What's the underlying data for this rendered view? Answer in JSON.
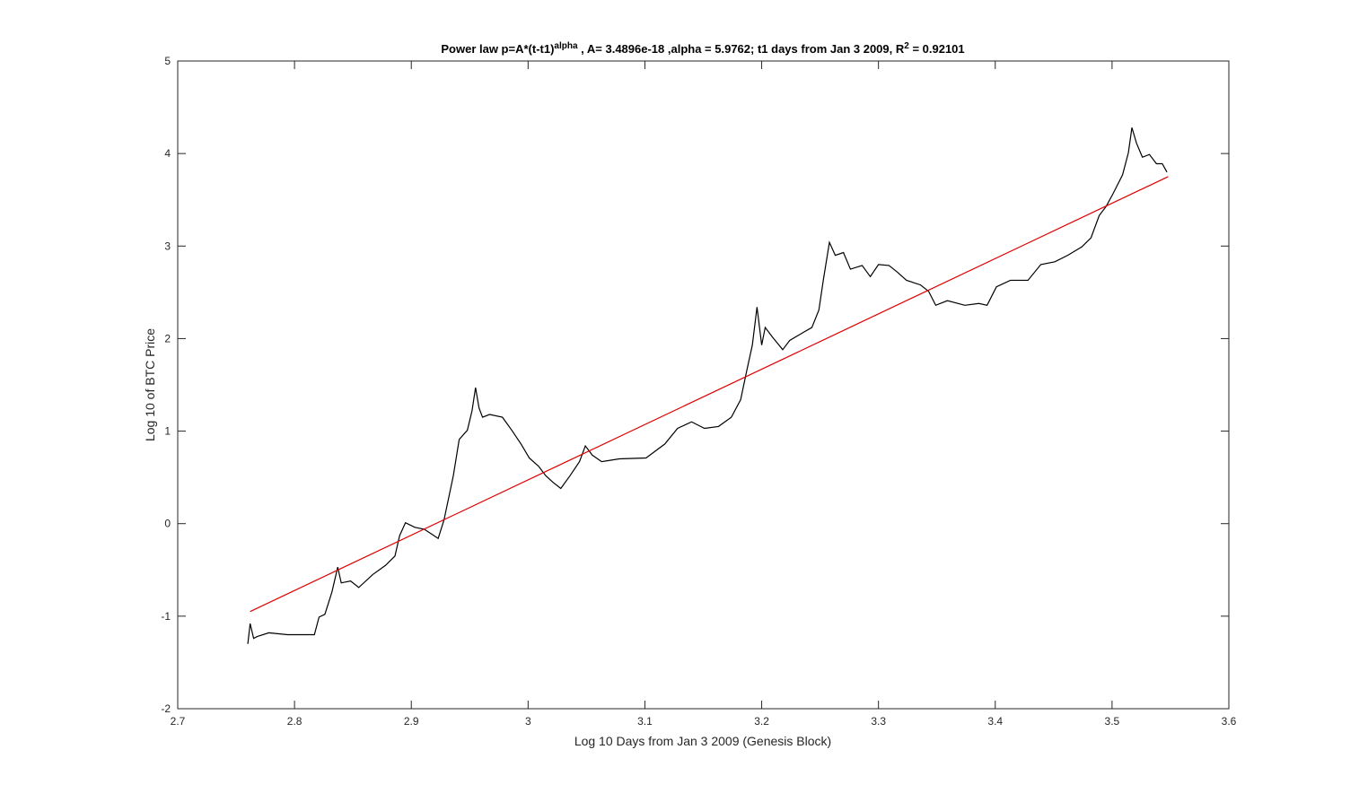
{
  "chart_data": {
    "type": "line",
    "title_parts": [
      {
        "text": "Power law p=A*(t-t1)"
      },
      {
        "text": "alpha",
        "superscript": true
      },
      {
        "text": " , A= 3.4896e-18 ,alpha = 5.9762; t1 days from Jan 3 2009, R"
      },
      {
        "text": "2",
        "superscript": true
      },
      {
        "text": " = 0.92101"
      }
    ],
    "x_label": "Log 10 Days from Jan 3 2009 (Genesis Block)",
    "y_label": "Log 10 of BTC Price",
    "xlim": [
      2.7,
      3.6
    ],
    "xticks": [
      2.7,
      2.8,
      2.9,
      3,
      3.1,
      3.2,
      3.3,
      3.4,
      3.5,
      3.6
    ],
    "ylim": [
      -2,
      5
    ],
    "yticks": [
      -2,
      -1,
      0,
      1,
      2,
      3,
      4,
      5
    ],
    "grid": false,
    "series": [
      {
        "color": "#000000",
        "x": [
          2.76,
          2.762,
          2.765,
          2.768,
          2.778,
          2.794,
          2.817,
          2.821,
          2.826,
          2.832,
          2.837,
          2.84,
          2.848,
          2.855,
          2.867,
          2.878,
          2.886,
          2.89,
          2.895,
          2.903,
          2.911,
          2.917,
          2.923,
          2.928,
          2.932,
          2.936,
          2.941,
          2.948,
          2.952,
          2.955,
          2.958,
          2.961,
          2.967,
          2.978,
          2.986,
          2.994,
          3.001,
          3.009,
          3.015,
          3.021,
          3.028,
          3.036,
          3.044,
          3.049,
          3.055,
          3.063,
          3.078,
          3.101,
          3.117,
          3.128,
          3.14,
          3.151,
          3.163,
          3.174,
          3.182,
          3.187,
          3.192,
          3.196,
          3.2,
          3.203,
          3.209,
          3.218,
          3.224,
          3.236,
          3.243,
          3.249,
          3.253,
          3.258,
          3.263,
          3.27,
          3.276,
          3.286,
          3.293,
          3.3,
          3.309,
          3.316,
          3.324,
          3.336,
          3.343,
          3.349,
          3.359,
          3.374,
          3.386,
          3.393,
          3.401,
          3.413,
          3.428,
          3.439,
          3.451,
          3.462,
          3.474,
          3.482,
          3.489,
          3.495,
          3.501,
          3.509,
          3.514,
          3.517,
          3.521,
          3.526,
          3.532,
          3.538,
          3.543,
          3.547
        ],
        "values": [
          -1.3,
          -1.08,
          -1.24,
          -1.22,
          -1.18,
          -1.2,
          -1.2,
          -1.01,
          -0.98,
          -0.74,
          -0.47,
          -0.64,
          -0.62,
          -0.69,
          -0.55,
          -0.45,
          -0.35,
          -0.13,
          0.01,
          -0.04,
          -0.06,
          -0.11,
          -0.16,
          0.04,
          0.28,
          0.52,
          0.91,
          1.01,
          1.22,
          1.47,
          1.25,
          1.15,
          1.18,
          1.15,
          1.01,
          0.86,
          0.71,
          0.62,
          0.52,
          0.45,
          0.38,
          0.52,
          0.67,
          0.84,
          0.74,
          0.67,
          0.7,
          0.71,
          0.86,
          1.03,
          1.1,
          1.03,
          1.05,
          1.15,
          1.34,
          1.64,
          1.93,
          2.34,
          1.93,
          2.12,
          2.02,
          1.88,
          1.98,
          2.07,
          2.12,
          2.31,
          2.65,
          3.04,
          2.9,
          2.93,
          2.75,
          2.79,
          2.67,
          2.8,
          2.79,
          2.72,
          2.63,
          2.58,
          2.51,
          2.36,
          2.41,
          2.36,
          2.38,
          2.36,
          2.56,
          2.63,
          2.63,
          2.8,
          2.83,
          2.9,
          2.99,
          3.09,
          3.33,
          3.43,
          3.57,
          3.77,
          4.01,
          4.28,
          4.11,
          3.96,
          3.99,
          3.89,
          3.89,
          3.8
        ]
      },
      {
        "color": "#e00000",
        "x": [
          2.762,
          3.548
        ],
        "values": [
          -0.95,
          3.75
        ]
      }
    ]
  }
}
